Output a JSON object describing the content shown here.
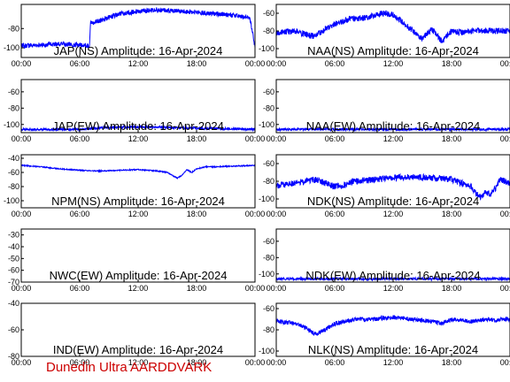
{
  "figure": {
    "footer": "Dunedin Ultra AARDDVARK",
    "trace_color": "#0000ff",
    "footer_color": "#cc0000"
  },
  "chart_data": [
    {
      "type": "line",
      "title": "JAP(NS) Amplitude: 16-Apr-2024",
      "xticks": [
        "00:00",
        "06:00",
        "12:00",
        "18:00",
        "00:00"
      ],
      "yticks": [
        "-100",
        "-80"
      ],
      "ylim": [
        -110,
        -55
      ],
      "xlim": [
        0,
        24
      ],
      "x": [
        0,
        2,
        4,
        6,
        7,
        7.1,
        8,
        10,
        12,
        14,
        16,
        18,
        20,
        21.5,
        22,
        22.5,
        23,
        23.5,
        24
      ],
      "y": [
        -98,
        -97,
        -96,
        -97,
        -98,
        -75,
        -72,
        -65,
        -62,
        -61,
        -62,
        -63,
        -65,
        -66,
        -67,
        -68,
        -68,
        -70,
        -100
      ],
      "noise": 5
    },
    {
      "type": "line",
      "title": "NAA(NS) Amplitude: 16-Apr-2024",
      "xticks": [
        "00:00",
        "06:00",
        "12:00",
        "18:00",
        "00:00"
      ],
      "yticks": [
        "-100",
        "-80",
        "-60"
      ],
      "ylim": [
        -110,
        -50
      ],
      "xlim": [
        0,
        24
      ],
      "x": [
        0,
        2,
        3,
        4,
        5,
        6,
        7,
        8,
        9,
        10,
        11,
        12,
        13,
        14,
        15,
        16,
        17,
        18,
        19,
        20,
        22,
        24
      ],
      "y": [
        -82,
        -80,
        -84,
        -86,
        -78,
        -72,
        -68,
        -66,
        -65,
        -63,
        -60,
        -62,
        -70,
        -80,
        -88,
        -78,
        -92,
        -80,
        -82,
        -80,
        -80,
        -80
      ],
      "noise": 7
    },
    {
      "type": "line",
      "title": "JAP(EW) Amplitude: 16-Apr-2024",
      "xticks": [
        "00:00",
        "06:00",
        "12:00",
        "18:00",
        "00:00"
      ],
      "yticks": [
        "-100",
        "-80",
        "-60"
      ],
      "ylim": [
        -110,
        -45
      ],
      "xlim": [
        0,
        24
      ],
      "x": [
        0,
        6,
        8,
        12,
        16,
        20,
        24
      ],
      "y": [
        -106,
        -106,
        -104,
        -103,
        -104,
        -105,
        -106
      ],
      "noise": 3
    },
    {
      "type": "line",
      "title": "NAA(EW) Amplitude: 16-Apr-2024",
      "xticks": [
        "00:00",
        "06:00",
        "12:00",
        "18:00",
        "00:00"
      ],
      "yticks": [
        "-100",
        "-80",
        "-60"
      ],
      "ylim": [
        -110,
        -45
      ],
      "xlim": [
        0,
        24
      ],
      "x": [
        0,
        24
      ],
      "y": [
        -106,
        -106
      ],
      "noise": 3
    },
    {
      "type": "line",
      "title": "NPM(NS) Amplitude: 16-Apr-2024",
      "xticks": [
        "00:00",
        "06:00",
        "12:00",
        "18:00",
        "00:00"
      ],
      "yticks": [
        "-100",
        "-80",
        "-60",
        "-40"
      ],
      "ylim": [
        -110,
        -35
      ],
      "xlim": [
        0,
        24
      ],
      "x": [
        0,
        2,
        4,
        6,
        8,
        10,
        12,
        14,
        15,
        16,
        16.5,
        17,
        17.5,
        18,
        19,
        20,
        22,
        24
      ],
      "y": [
        -50,
        -52,
        -55,
        -57,
        -58,
        -57,
        -56,
        -58,
        -60,
        -68,
        -64,
        -56,
        -60,
        -55,
        -52,
        -52,
        -51,
        -50
      ],
      "noise": 1.5
    },
    {
      "type": "line",
      "title": "NDK(NS) Amplitude: 16-Apr-2024",
      "xticks": [
        "00:00",
        "06:00",
        "12:00",
        "18:00",
        "00:00"
      ],
      "yticks": [
        "-100",
        "-80",
        "-60"
      ],
      "ylim": [
        -110,
        -50
      ],
      "xlim": [
        0,
        24
      ],
      "x": [
        0,
        2,
        3,
        4,
        5,
        6,
        7,
        8,
        10,
        12,
        14,
        16,
        18,
        19,
        20,
        20.5,
        21,
        21.5,
        22,
        22.5,
        23,
        24
      ],
      "y": [
        -85,
        -82,
        -80,
        -78,
        -82,
        -86,
        -84,
        -80,
        -78,
        -76,
        -75,
        -76,
        -78,
        -82,
        -86,
        -94,
        -98,
        -92,
        -95,
        -88,
        -78,
        -82
      ],
      "noise": 7
    },
    {
      "type": "line",
      "title": "NWC(EW) Amplitude: 16-Apr-2024",
      "xticks": [
        "00:00",
        "06:00",
        "12:00",
        "18:00",
        "00:00"
      ],
      "yticks": [
        "-70",
        "-60",
        "-50",
        "-40",
        "-30"
      ],
      "ylim": [
        -70,
        -25
      ],
      "xlim": [
        0,
        24
      ],
      "x": [],
      "y": [],
      "noise": 0
    },
    {
      "type": "line",
      "title": "NDK(EW) Amplitude: 16-Apr-2024",
      "xticks": [
        "00:00",
        "06:00",
        "12:00",
        "18:00",
        "00:00"
      ],
      "yticks": [
        "-100",
        "-80",
        "-60"
      ],
      "ylim": [
        -110,
        -45
      ],
      "xlim": [
        0,
        24
      ],
      "x": [
        0,
        24
      ],
      "y": [
        -106,
        -106
      ],
      "noise": 3
    },
    {
      "type": "line",
      "title": "IND(EW) Amplitude: 16-Apr-2024",
      "xticks": [
        "00:00",
        "06:00",
        "12:00",
        "18:00",
        "00:00"
      ],
      "yticks": [
        "-80",
        "-60",
        "-40"
      ],
      "ylim": [
        -80,
        -40
      ],
      "xlim": [
        0,
        24
      ],
      "x": [],
      "y": [],
      "noise": 0
    },
    {
      "type": "line",
      "title": "NLK(NS) Amplitude: 16-Apr-2024",
      "xticks": [
        "00:00",
        "06:00",
        "12:00",
        "18:00",
        "00:00"
      ],
      "yticks": [
        "-100",
        "-80",
        "-60"
      ],
      "ylim": [
        -105,
        -55
      ],
      "xlim": [
        0,
        24
      ],
      "x": [
        0,
        2,
        3,
        4,
        5,
        6,
        7,
        8,
        10,
        12,
        14,
        16,
        17,
        18,
        20,
        22,
        22.5,
        23,
        24
      ],
      "y": [
        -72,
        -74,
        -78,
        -84,
        -80,
        -74,
        -72,
        -70,
        -70,
        -68,
        -70,
        -72,
        -74,
        -70,
        -72,
        -70,
        -72,
        -70,
        -70
      ],
      "noise": 4
    }
  ]
}
